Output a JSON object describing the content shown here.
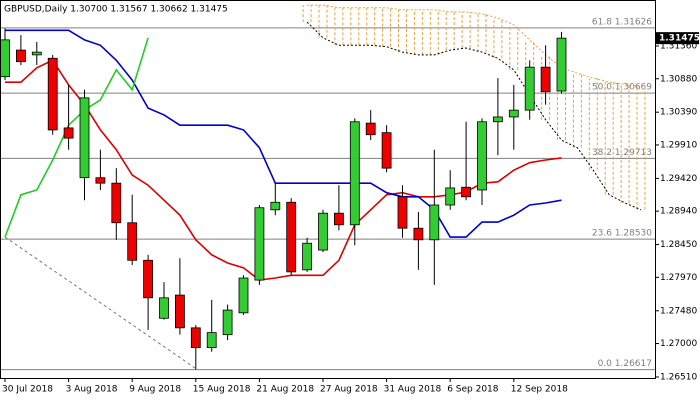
{
  "chart_data": {
    "type": "candlestick",
    "title": "GBPUSD,Daily  1.30700 1.31567 1.30662 1.31475",
    "categories": [
      "30 Jul 2018",
      null,
      null,
      null,
      "3 Aug 2018",
      null,
      null,
      null,
      "9 Aug 2018",
      null,
      null,
      null,
      "15 Aug 2018",
      null,
      null,
      null,
      "21 Aug 2018",
      null,
      null,
      null,
      "27 Aug 2018",
      null,
      null,
      null,
      "31 Aug 2018",
      null,
      null,
      null,
      "6 Sep 2018",
      null,
      null,
      null,
      "12 Sep 2018",
      null,
      null,
      null,
      null,
      null,
      null,
      null,
      null
    ],
    "open": [
      1.3091,
      1.313,
      1.3123,
      1.3118,
      1.3016,
      1.2943,
      1.2943,
      1.2935,
      1.2877,
      1.2822,
      1.2737,
      1.2771,
      1.2723,
      1.2694,
      1.2713,
      1.2745,
      1.2793,
      1.2896,
      1.2907,
      1.2808,
      1.2837,
      1.2891,
      1.2874,
      1.3023,
      1.3009,
      1.2915,
      1.2869,
      1.2852,
      1.2903,
      1.2929,
      1.2925,
      1.3025,
      1.3032,
      1.3042,
      1.3105,
      1.307,
      null,
      null,
      null,
      null,
      null
    ],
    "high": [
      1.3162,
      1.3152,
      1.3142,
      1.3123,
      1.3079,
      1.3072,
      1.2984,
      1.2957,
      1.2918,
      1.283,
      1.279,
      1.2825,
      1.2727,
      1.2764,
      1.2757,
      1.28,
      1.2903,
      1.2935,
      1.2913,
      1.2855,
      1.2896,
      1.2932,
      1.303,
      1.3042,
      1.302,
      1.2932,
      1.2893,
      1.2984,
      1.2954,
      1.3025,
      1.303,
      1.3089,
      1.3079,
      1.3115,
      1.3137,
      1.31567,
      null,
      null,
      null,
      null,
      null
    ],
    "low": [
      1.3086,
      1.3108,
      1.3108,
      1.3006,
      1.2984,
      1.291,
      1.2925,
      1.2852,
      1.2815,
      1.272,
      1.2735,
      1.2713,
      1.2662,
      1.2688,
      1.2705,
      1.2742,
      1.2786,
      1.2888,
      1.28,
      1.2805,
      1.2834,
      1.2866,
      1.2844,
      1.2998,
      1.2951,
      1.2855,
      1.2808,
      1.2786,
      1.2896,
      1.291,
      1.2903,
      1.2976,
      1.2984,
      1.3028,
      1.305,
      1.30662,
      null,
      null,
      null,
      null,
      null
    ],
    "close": [
      1.3145,
      1.3113,
      1.3127,
      1.3013,
      1.3001,
      1.306,
      1.2935,
      1.2877,
      1.2822,
      1.2767,
      1.2767,
      1.2723,
      1.2694,
      1.2716,
      1.2749,
      1.2796,
      1.2899,
      1.2907,
      1.2805,
      1.2847,
      1.2891,
      1.2874,
      1.3025,
      1.3006,
      1.2957,
      1.2869,
      1.2852,
      1.2903,
      1.2928,
      1.2915,
      1.3025,
      1.3032,
      1.3042,
      1.3105,
      1.3069,
      1.31475,
      null,
      null,
      null,
      null,
      null
    ],
    "up_color": "#33cc33",
    "down_color": "#ee0000",
    "series": [
      {
        "color": "#dd0000",
        "values": [
          1.3083,
          1.3083,
          1.3104,
          1.3115,
          1.3079,
          1.305,
          1.3013,
          1.2984,
          1.2947,
          1.2932,
          1.291,
          1.2888,
          1.2852,
          1.283,
          1.2818,
          1.2811,
          1.2793,
          1.2796,
          1.28,
          1.28,
          1.28,
          1.2822,
          1.2874,
          1.2896,
          1.2918,
          1.2921,
          1.2915,
          1.2915,
          1.2918,
          1.2922,
          1.2935,
          1.2937,
          1.2954,
          1.2965,
          1.2969,
          1.2972,
          null,
          null,
          null,
          null,
          null
        ]
      },
      {
        "color": "#0000cc",
        "values": [
          1.3159,
          1.3159,
          1.3159,
          1.3159,
          1.3159,
          1.3145,
          1.3137,
          1.3115,
          1.3086,
          1.3045,
          1.3035,
          1.302,
          1.302,
          1.302,
          1.302,
          1.3013,
          1.2987,
          1.2935,
          1.2935,
          1.2935,
          1.2935,
          1.2935,
          1.2935,
          1.2935,
          1.2921,
          1.2915,
          1.2915,
          1.2896,
          1.2856,
          1.2856,
          1.2878,
          1.2878,
          1.2888,
          1.2903,
          1.2906,
          1.291,
          null,
          null,
          null,
          null,
          null
        ]
      },
      {
        "color": "#22cc22",
        "values": [
          1.2856,
          1.2918,
          1.2925,
          1.2969,
          1.302,
          1.3042,
          1.3057,
          1.3101,
          1.3072,
          1.3148,
          null,
          null,
          null,
          null,
          null,
          null,
          null,
          null,
          null,
          null,
          null,
          null,
          null,
          null,
          null,
          null,
          null,
          null,
          null,
          null,
          null,
          null,
          null,
          null,
          null,
          null,
          null,
          null,
          null,
          null,
          null
        ]
      }
    ],
    "cloud": {
      "color": "#e8a33d",
      "edge_colors": [
        "#000000",
        "#e8a33d"
      ],
      "span_a": [
        null,
        null,
        null,
        null,
        null,
        null,
        null,
        null,
        null,
        null,
        null,
        null,
        null,
        null,
        null,
        null,
        null,
        null,
        null,
        1.3171,
        1.3148,
        1.3137,
        1.3137,
        1.3137,
        1.3135,
        1.3127,
        1.3123,
        1.3123,
        1.313,
        1.3133,
        1.3127,
        1.3118,
        1.3101,
        1.3064,
        1.3028,
        1.2998,
        1.2987,
        1.2954,
        1.2918,
        1.2906,
        1.2896
      ],
      "span_b": [
        null,
        null,
        null,
        null,
        null,
        null,
        null,
        null,
        null,
        null,
        null,
        null,
        null,
        null,
        null,
        null,
        null,
        null,
        null,
        1.3196,
        1.3196,
        1.3192,
        1.3192,
        1.3192,
        1.3192,
        1.3189,
        1.3189,
        1.3189,
        1.3186,
        1.3186,
        1.3183,
        1.3177,
        1.3167,
        1.3145,
        1.3123,
        1.3104,
        1.3096,
        1.3089,
        1.3083,
        1.308,
        1.3077
      ]
    },
    "fib": [
      {
        "label": "61.8 1.31626",
        "value": 1.31626
      },
      {
        "label": "50.0 1.30669",
        "value": 1.30669
      },
      {
        "label": "38.2 1.29713",
        "value": 1.29713
      },
      {
        "label": "23.6 1.28530",
        "value": 1.2853
      },
      {
        "label": "0.0 1.26617",
        "value": 1.26617
      }
    ],
    "current_price": {
      "value": 1.31475,
      "label": "1.31475"
    },
    "ylim": [
      1.26495,
      1.32034
    ],
    "yticks": [
      {
        "value": 1.2651,
        "label": "1.26510"
      },
      {
        "value": 1.27,
        "label": "1.27000"
      },
      {
        "value": 1.2748,
        "label": "1.27480"
      },
      {
        "value": 1.2797,
        "label": "1.27970"
      },
      {
        "value": 1.2845,
        "label": "1.28450"
      },
      {
        "value": 1.2894,
        "label": "1.28940"
      },
      {
        "value": 1.2942,
        "label": "1.29420"
      },
      {
        "value": 1.2991,
        "label": "1.29910"
      },
      {
        "value": 1.3039,
        "label": "1.30390"
      },
      {
        "value": 1.3088,
        "label": "1.30880"
      },
      {
        "value": 1.3136,
        "label": "1.31360"
      }
    ]
  }
}
